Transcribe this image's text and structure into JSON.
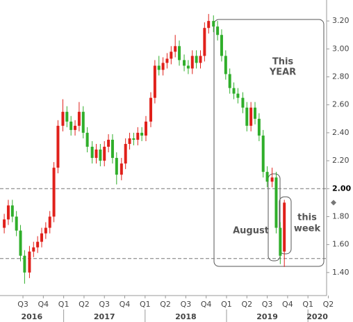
{
  "chart_data": {
    "type": "candlestick",
    "up_color": "#e0201a",
    "down_color": "#2fae2a",
    "x": [
      2016.27,
      2016.32,
      2016.37,
      2016.42,
      2016.47,
      2016.52,
      2016.58,
      2016.63,
      2016.68,
      2016.73,
      2016.78,
      2016.83,
      2016.88,
      2016.93,
      2016.99,
      2017.04,
      2017.09,
      2017.14,
      2017.19,
      2017.24,
      2017.29,
      2017.35,
      2017.4,
      2017.45,
      2017.5,
      2017.55,
      2017.6,
      2017.65,
      2017.71,
      2017.76,
      2017.81,
      2017.86,
      2017.91,
      2017.96,
      2018.01,
      2018.07,
      2018.12,
      2018.17,
      2018.22,
      2018.27,
      2018.32,
      2018.37,
      2018.42,
      2018.48,
      2018.53,
      2018.58,
      2018.63,
      2018.68,
      2018.73,
      2018.78,
      2018.84,
      2018.89,
      2018.94,
      2018.99,
      2019.04,
      2019.09,
      2019.14,
      2019.2,
      2019.25,
      2019.3,
      2019.35,
      2019.4,
      2019.45,
      2019.5,
      2019.56,
      2019.61,
      2019.66,
      2019.71
    ],
    "open": [
      1.72,
      1.78,
      1.88,
      1.8,
      1.7,
      1.52,
      1.4,
      1.55,
      1.58,
      1.62,
      1.68,
      1.72,
      1.8,
      2.15,
      2.45,
      2.55,
      2.48,
      2.42,
      2.45,
      2.55,
      2.4,
      2.3,
      2.22,
      2.28,
      2.2,
      2.3,
      2.35,
      2.22,
      2.1,
      2.18,
      2.32,
      2.36,
      2.35,
      2.4,
      2.38,
      2.48,
      2.65,
      2.88,
      2.85,
      2.9,
      2.93,
      2.98,
      3.02,
      2.92,
      2.88,
      2.86,
      2.95,
      2.9,
      2.95,
      3.15,
      3.2,
      3.16,
      3.1,
      2.95,
      2.82,
      2.72,
      2.68,
      2.65,
      2.58,
      2.45,
      2.58,
      2.5,
      2.38,
      2.12,
      2.05,
      2.08,
      1.72,
      1.55
    ],
    "high": [
      1.82,
      1.92,
      1.92,
      1.84,
      1.74,
      1.56,
      1.59,
      1.62,
      1.66,
      1.72,
      1.76,
      1.84,
      2.19,
      2.49,
      2.64,
      2.59,
      2.52,
      2.49,
      2.62,
      2.59,
      2.44,
      2.34,
      2.32,
      2.32,
      2.34,
      2.39,
      2.39,
      2.26,
      2.22,
      2.36,
      2.4,
      2.4,
      2.44,
      2.44,
      2.52,
      2.69,
      2.92,
      2.95,
      2.94,
      2.97,
      3.02,
      3.1,
      3.06,
      2.96,
      2.92,
      2.99,
      2.99,
      2.99,
      3.19,
      3.25,
      3.24,
      3.2,
      3.14,
      2.99,
      2.86,
      2.76,
      2.72,
      2.69,
      2.62,
      2.62,
      2.62,
      2.54,
      2.42,
      2.16,
      2.15,
      2.12,
      1.76,
      1.92
    ],
    "low": [
      1.68,
      1.74,
      1.76,
      1.66,
      1.48,
      1.32,
      1.36,
      1.51,
      1.54,
      1.58,
      1.64,
      1.68,
      1.76,
      2.11,
      2.41,
      2.44,
      2.38,
      2.38,
      2.41,
      2.36,
      2.26,
      2.18,
      2.18,
      2.16,
      2.16,
      2.26,
      2.18,
      2.03,
      2.06,
      2.14,
      2.28,
      2.31,
      2.31,
      2.34,
      2.34,
      2.44,
      2.61,
      2.81,
      2.81,
      2.86,
      2.89,
      2.94,
      2.88,
      2.84,
      2.82,
      2.82,
      2.86,
      2.86,
      2.91,
      3.11,
      3.12,
      3.06,
      2.91,
      2.78,
      2.68,
      2.64,
      2.61,
      2.54,
      2.41,
      2.41,
      2.46,
      2.34,
      2.08,
      2.01,
      2.01,
      1.68,
      1.46,
      1.44
    ],
    "close": [
      1.78,
      1.88,
      1.8,
      1.7,
      1.52,
      1.4,
      1.55,
      1.58,
      1.62,
      1.68,
      1.72,
      1.8,
      2.15,
      2.45,
      2.55,
      2.48,
      2.42,
      2.45,
      2.55,
      2.4,
      2.3,
      2.22,
      2.28,
      2.2,
      2.3,
      2.35,
      2.22,
      2.1,
      2.18,
      2.32,
      2.36,
      2.35,
      2.4,
      2.38,
      2.48,
      2.65,
      2.88,
      2.85,
      2.9,
      2.93,
      2.98,
      3.02,
      2.92,
      2.88,
      2.86,
      2.95,
      2.9,
      2.95,
      3.15,
      3.2,
      3.16,
      3.1,
      2.95,
      2.82,
      2.72,
      2.68,
      2.65,
      2.58,
      2.45,
      2.58,
      2.5,
      2.38,
      2.12,
      2.05,
      2.08,
      1.72,
      1.52,
      1.9
    ],
    "xlim": [
      2016.218,
      2020.229
    ],
    "ylim": [
      1.235,
      3.35
    ],
    "yticks": [
      {
        "value": 1.4,
        "label": "1.40"
      },
      {
        "value": 1.6,
        "label": "1.60"
      },
      {
        "value": 1.8,
        "label": "1.80"
      },
      {
        "value": 2.0,
        "label": "2.00"
      },
      {
        "value": 2.2,
        "label": "2.20"
      },
      {
        "value": 2.4,
        "label": "2.40"
      },
      {
        "value": 2.6,
        "label": "2.60"
      },
      {
        "value": 2.8,
        "label": "2.80"
      },
      {
        "value": 3.0,
        "label": "3.00"
      },
      {
        "value": 3.2,
        "label": "3.20"
      }
    ],
    "bold_ytick": 2.0,
    "xticks": [
      {
        "value": 2016.5,
        "label": "Q3"
      },
      {
        "value": 2016.75,
        "label": "Q4"
      },
      {
        "value": 2017.0,
        "label": "Q1"
      },
      {
        "value": 2017.25,
        "label": "Q2"
      },
      {
        "value": 2017.5,
        "label": "Q3"
      },
      {
        "value": 2017.75,
        "label": "Q4"
      },
      {
        "value": 2018.0,
        "label": "Q1"
      },
      {
        "value": 2018.25,
        "label": "Q2"
      },
      {
        "value": 2018.5,
        "label": "Q3"
      },
      {
        "value": 2018.75,
        "label": "Q4"
      },
      {
        "value": 2019.0,
        "label": "Q1"
      },
      {
        "value": 2019.25,
        "label": "Q2"
      },
      {
        "value": 2019.5,
        "label": "Q3"
      },
      {
        "value": 2019.75,
        "label": "Q4"
      },
      {
        "value": 2020.0,
        "label": "Q1"
      },
      {
        "value": 2020.25,
        "label": "Q2"
      }
    ],
    "years": [
      {
        "value": 2016,
        "label": "2016"
      },
      {
        "value": 2017,
        "label": "2017"
      },
      {
        "value": 2018,
        "label": "2018"
      },
      {
        "value": 2019,
        "label": "2019"
      },
      {
        "value": 2020,
        "label": "2020"
      }
    ],
    "hlines": [
      2.0,
      1.5
    ],
    "annotations": [
      {
        "lines": [
          "This",
          "YEAR"
        ]
      },
      {
        "lines": [
          "August"
        ]
      },
      {
        "lines": [
          "this",
          "week"
        ]
      }
    ]
  }
}
